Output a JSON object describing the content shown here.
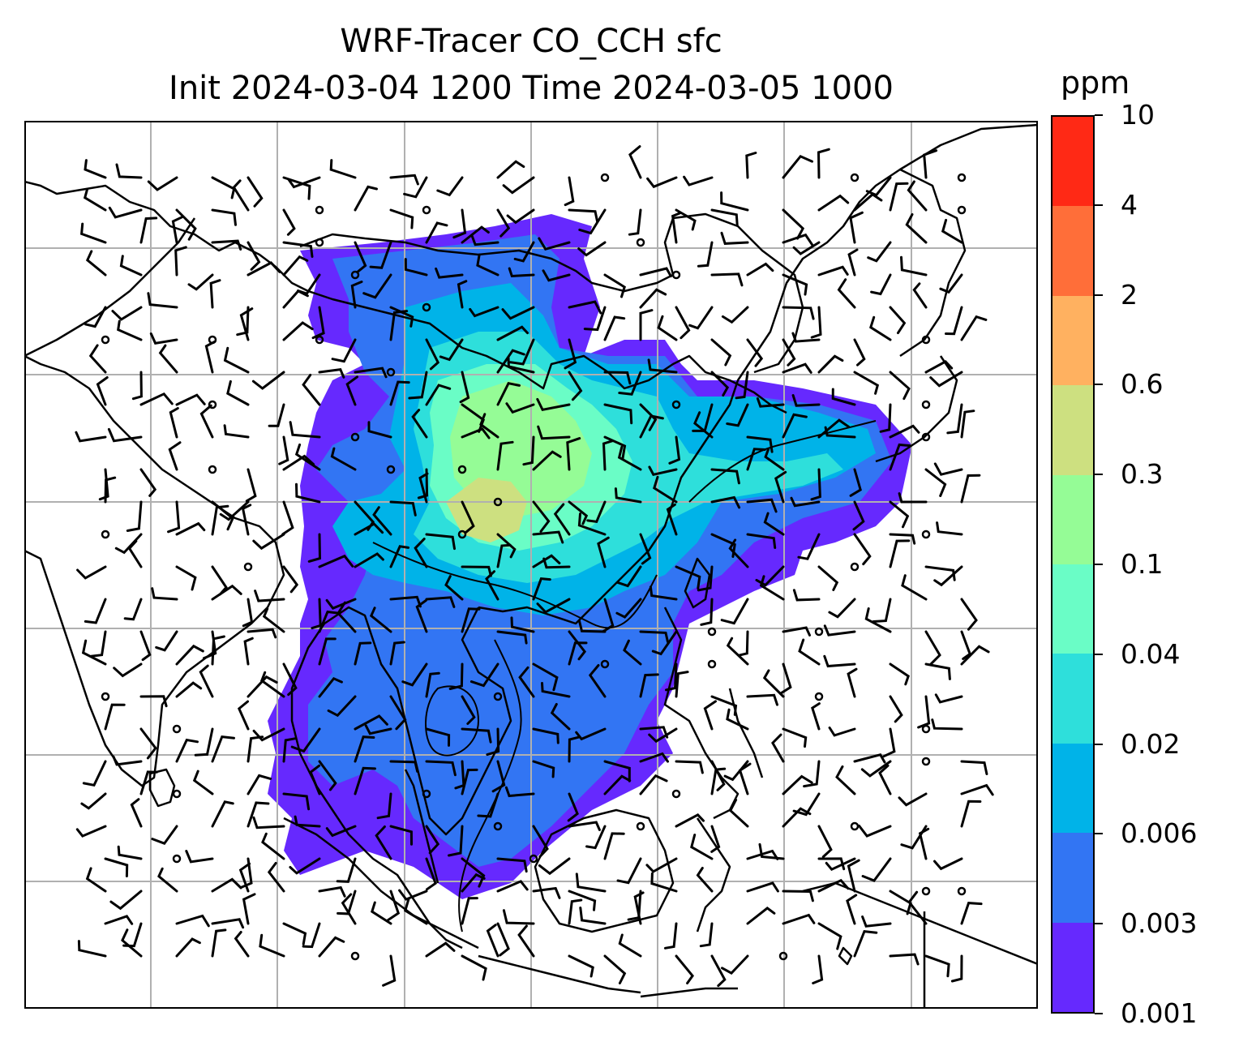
{
  "figure": {
    "title_line_1": "WRF-Tracer CO_CCH sfc",
    "title_line_2": "Init 2024-03-04 1200 Time 2024-03-05 1000"
  },
  "map": {
    "projection": "lat-lon",
    "gridlines": true,
    "coastlines": true,
    "fields": {
      "shaded": "CO_CCH tracer concentration (surface)",
      "contours": "black contour lines",
      "vectors": "wind barbs"
    }
  },
  "colorbar": {
    "unit": "ppm",
    "levels": [
      "0.001",
      "0.003",
      "0.006",
      "0.02",
      "0.04",
      "0.1",
      "0.3",
      "0.6",
      "2",
      "4",
      "10"
    ],
    "colors": [
      "#6629fe",
      "#3275f3",
      "#00b3e8",
      "#2edfdb",
      "#6afdc6",
      "#95fc96",
      "#cde080",
      "#ffb160",
      "#ff6e39",
      "#ff2915"
    ]
  }
}
